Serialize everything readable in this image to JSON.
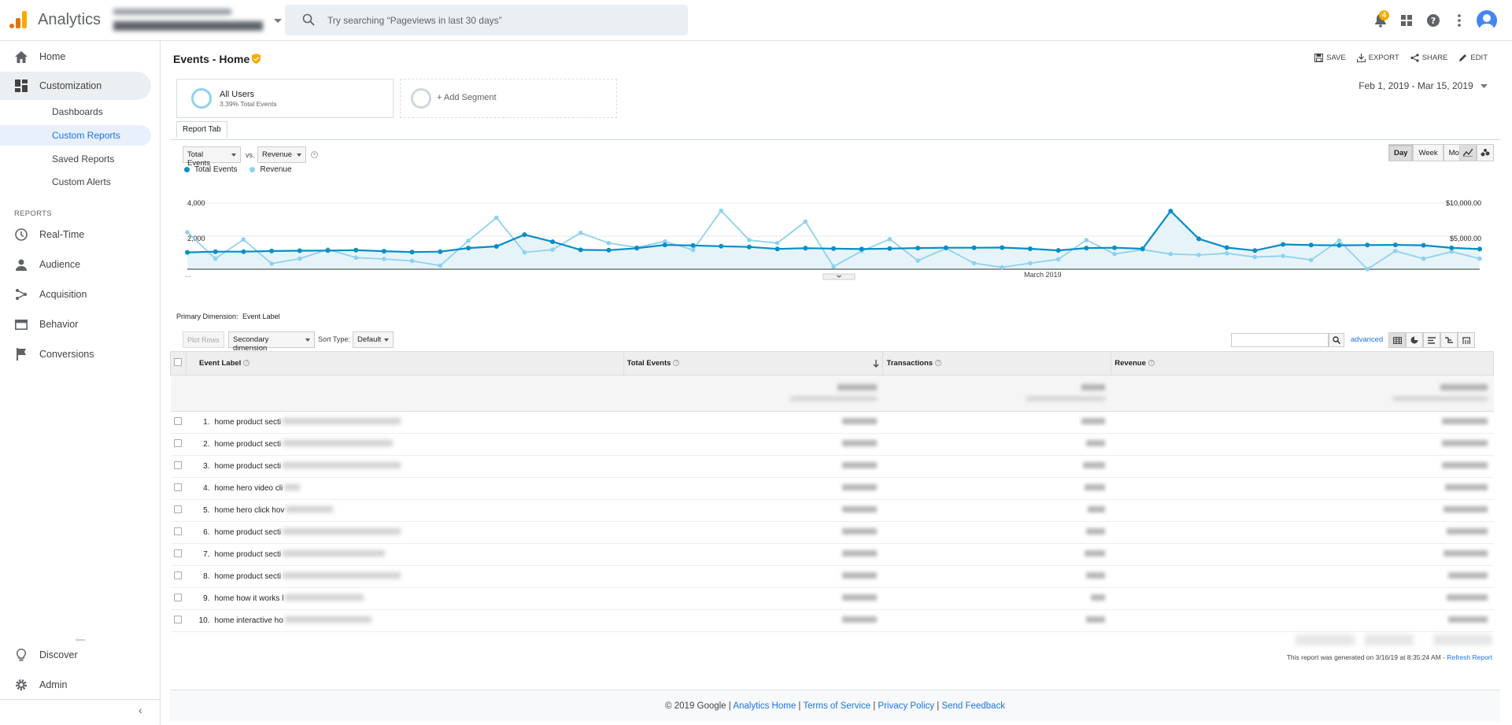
{
  "topbar": {
    "brand": "Analytics",
    "search_placeholder": "Try searching “Pageviews in last 30 days”",
    "notification_count": "4",
    "colors": {
      "logo_orange": "#f9ab00",
      "logo_dark": "#e37400",
      "accent": "#1a73e8"
    }
  },
  "sidebar": {
    "home": "Home",
    "customization": "Customization",
    "customization_items": [
      "Dashboards",
      "Custom Reports",
      "Saved Reports",
      "Custom Alerts"
    ],
    "reports_label": "REPORTS",
    "reports": [
      "Real-Time",
      "Audience",
      "Acquisition",
      "Behavior",
      "Conversions"
    ],
    "discover": "Discover",
    "admin": "Admin",
    "collapse_icon": "‹"
  },
  "header": {
    "title": "Events - Home",
    "actions": {
      "save": "SAVE",
      "export": "EXPORT",
      "share": "SHARE",
      "edit": "EDIT"
    }
  },
  "segments": {
    "all_users": "All Users",
    "all_users_sub": "3.39% Total Events",
    "add_segment": "+ Add Segment"
  },
  "date_range": "Feb 1, 2019 - Mar 15, 2019",
  "report_tab": "Report Tab",
  "chart_controls": {
    "metric1": "Total Events",
    "vs": "vs.",
    "metric2": "Revenue",
    "period": [
      "Day",
      "Week",
      "Month"
    ],
    "selected_period": "Day"
  },
  "chart_data": {
    "type": "line",
    "title": "",
    "legend": [
      "Total Events",
      "Revenue"
    ],
    "y_left_ticks": [
      "4,000",
      "2,000"
    ],
    "y_left_range": [
      0,
      4000
    ],
    "y_right_ticks": [
      "$10,000.00",
      "$5,000.00"
    ],
    "y_right_range": [
      0,
      10000
    ],
    "x_start_label": "...",
    "x_mid_label": "March 2019",
    "series": [
      {
        "name": "Total Events",
        "color": "#058dc7",
        "axis": "left",
        "values": [
          1020,
          1060,
          1060,
          1100,
          1120,
          1130,
          1150,
          1090,
          1040,
          1060,
          1280,
          1380,
          2090,
          1660,
          1170,
          1150,
          1270,
          1470,
          1440,
          1390,
          1350,
          1230,
          1270,
          1250,
          1220,
          1250,
          1280,
          1300,
          1300,
          1310,
          1240,
          1140,
          1280,
          1300,
          1240,
          3520,
          1840,
          1310,
          1130,
          1500,
          1460,
          1450,
          1460,
          1470,
          1450,
          1290,
          1220
        ]
      },
      {
        "name": "Revenue",
        "color": "#8fd1f0",
        "axis": "right",
        "values": [
          5600,
          1600,
          4500,
          850,
          1600,
          3000,
          1750,
          1550,
          1250,
          550,
          4300,
          7800,
          2550,
          2950,
          5500,
          3950,
          3300,
          4200,
          2900,
          8850,
          4400,
          3950,
          7200,
          400,
          2750,
          4550,
          1300,
          3150,
          900,
          300,
          900,
          1500,
          4400,
          2300,
          2950,
          2300,
          2150,
          2400,
          1850,
          2000,
          1400,
          4350,
          0,
          2750,
          1600,
          2650,
          1600
        ]
      }
    ]
  },
  "table": {
    "primary_dimension_label": "Primary Dimension:",
    "primary_dimension_value": "Event Label",
    "plot_rows": "Plot Rows",
    "secondary_dimension": "Secondary dimension",
    "sort_type_label": "Sort Type:",
    "sort_type_value": "Default",
    "advanced": "advanced",
    "columns": [
      "Event Label",
      "Total Events",
      "Transactions",
      "Revenue"
    ],
    "rows": [
      {
        "num": "1.",
        "label": "home product secti"
      },
      {
        "num": "2.",
        "label": "home product secti"
      },
      {
        "num": "3.",
        "label": "home product secti"
      },
      {
        "num": "4.",
        "label": "home hero video cli"
      },
      {
        "num": "5.",
        "label": "home hero click hov"
      },
      {
        "num": "6.",
        "label": "home product secti"
      },
      {
        "num": "7.",
        "label": "home product secti"
      },
      {
        "num": "8.",
        "label": "home product secti"
      },
      {
        "num": "9.",
        "label": "home how it works l"
      },
      {
        "num": "10.",
        "label": "home interactive ho"
      }
    ]
  },
  "generated": {
    "text": "This report was generated on 3/16/19 at 8:35:24 AM - ",
    "refresh": "Refresh Report"
  },
  "footer": {
    "copyright": "© 2019 Google",
    "links": [
      "Analytics Home",
      "Terms of Service",
      "Privacy Policy",
      "Send Feedback"
    ]
  }
}
